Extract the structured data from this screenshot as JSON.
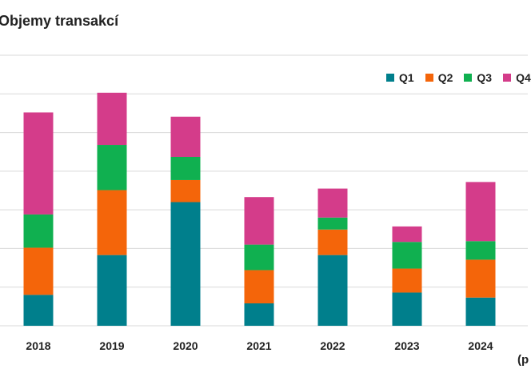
{
  "title": "Objemy transakcí",
  "unit_note": "(p",
  "colors": {
    "Q1": "#007f8c",
    "Q2": "#f4650a",
    "Q3": "#10b050",
    "Q4": "#d43c8a",
    "grid": "#d9d9d9"
  },
  "chart_data": {
    "type": "bar",
    "stacked": true,
    "title": "Objemy transakcí",
    "xlabel": "",
    "ylabel": "",
    "categories": [
      "2018",
      "2019",
      "2020",
      "2021",
      "2022",
      "2023",
      "2024"
    ],
    "series": [
      {
        "name": "Q1",
        "values": [
          0.8,
          1.83,
          3.2,
          0.58,
          1.83,
          0.86,
          0.73
        ]
      },
      {
        "name": "Q2",
        "values": [
          1.22,
          1.68,
          0.57,
          0.86,
          0.66,
          0.62,
          0.98
        ]
      },
      {
        "name": "Q3",
        "values": [
          0.86,
          1.17,
          0.6,
          0.66,
          0.31,
          0.69,
          0.48
        ]
      },
      {
        "name": "Q4",
        "values": [
          2.64,
          1.35,
          1.04,
          1.23,
          0.75,
          0.4,
          1.53
        ]
      }
    ],
    "ylim": [
      0,
      7
    ],
    "grid": true,
    "legend": "top-right"
  }
}
